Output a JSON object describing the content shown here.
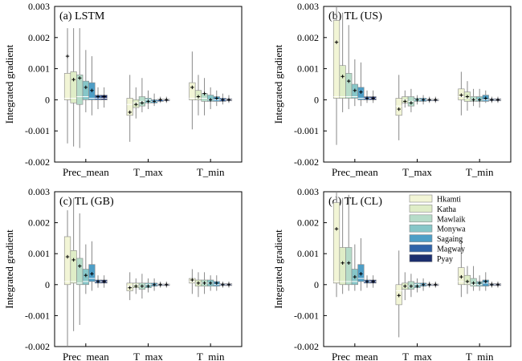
{
  "figure": {
    "ylabel": "Integrated gradient",
    "legend": {
      "title": "",
      "placement": "upper-left of panel (d)",
      "entries": [
        "Hkamti",
        "Katha",
        "Mawlaik",
        "Monywa",
        "Sagaing",
        "Magway",
        "Pyay"
      ]
    },
    "colors": [
      "#f2f5d6",
      "#dfedc7",
      "#b6dcc9",
      "#86c6c8",
      "#4e9ec6",
      "#2f63a8",
      "#1c2f6e"
    ],
    "box_stroke": "#888888",
    "median_color": "#ffffff",
    "mean_marker": "+"
  },
  "chart_data": [
    {
      "type": "box",
      "title": "(a) LSTM",
      "categories": [
        "Prec_mean",
        "T_max",
        "T_min"
      ],
      "ylim": [
        -0.002,
        0.003
      ],
      "yticks": [
        "-0.002",
        "-0.001",
        "0",
        "0.001",
        "0.002",
        "0.003"
      ],
      "ylabel": "Integrated gradient",
      "grid": false,
      "series": [
        {
          "name": "Hkamti",
          "groups": [
            [
              -0.0014,
              0.0,
              5e-05,
              0.00085,
              0.0023,
              0.0014
            ],
            [
              -0.00135,
              -0.0005,
              -0.00015,
              5e-05,
              0.0008,
              -0.0004
            ],
            [
              -0.00095,
              0.0,
              5e-05,
              0.00055,
              0.00155,
              0.0004
            ]
          ]
        },
        {
          "name": "Katha",
          "groups": [
            [
              -0.0015,
              -0.0001,
              5e-05,
              0.0009,
              0.0023,
              0.00065
            ],
            [
              -0.0006,
              -0.00025,
              -0.0001,
              0.0,
              0.0004,
              -0.00015
            ],
            [
              -0.0005,
              0.0,
              5e-05,
              0.0003,
              0.0008,
              0.0001
            ]
          ]
        },
        {
          "name": "Mawlaik",
          "groups": [
            [
              -0.00155,
              -0.00015,
              0.0001,
              0.0008,
              0.0023,
              0.0007
            ],
            [
              -0.0004,
              -0.0002,
              -5e-05,
              0.0001,
              0.0007,
              -0.0001
            ],
            [
              -0.0005,
              -5e-05,
              5e-05,
              0.0002,
              0.0007,
              0.0002
            ]
          ]
        },
        {
          "name": "Monywa",
          "groups": [
            [
              -0.0004,
              0.0,
              0.0001,
              0.0006,
              0.0016,
              0.0004
            ],
            [
              -0.0003,
              -0.0001,
              0.0,
              5e-05,
              0.0003,
              -5e-05
            ],
            [
              -0.0003,
              -5e-05,
              0.0,
              0.00015,
              0.0004,
              0.0
            ]
          ]
        },
        {
          "name": "Sagaing",
          "groups": [
            [
              -0.0005,
              0.0,
              5e-05,
              0.00055,
              0.0014,
              0.0003
            ],
            [
              -0.0002,
              -0.0001,
              -5e-05,
              0.0,
              0.0002,
              -5e-05
            ],
            [
              -0.0002,
              -5e-05,
              0.0,
              0.0001,
              0.0003,
              5e-05
            ]
          ]
        },
        {
          "name": "Magway",
          "groups": [
            [
              -0.0003,
              0.0,
              5e-05,
              0.00015,
              0.0004,
              0.0001
            ],
            [
              -0.0001,
              -5e-05,
              0.0,
              2e-05,
              0.0001,
              0.0
            ],
            [
              -0.00015,
              -5e-05,
              0.0,
              5e-05,
              0.0002,
              0.0
            ]
          ]
        },
        {
          "name": "Pyay",
          "groups": [
            [
              -0.00025,
              0.0,
              5e-05,
              0.00015,
              0.0004,
              0.0001
            ],
            [
              -0.0001,
              -3e-05,
              0.0,
              2e-05,
              0.0001,
              0.0
            ],
            [
              -0.0001,
              -3e-05,
              0.0,
              3e-05,
              0.00015,
              0.0
            ]
          ]
        }
      ]
    },
    {
      "type": "box",
      "title": "(b) TL (US)",
      "categories": [
        "Prec_mean",
        "T_max",
        "T_min"
      ],
      "ylim": [
        -0.002,
        0.003
      ],
      "yticks": [
        "-0.002",
        "-0.001",
        "0",
        "0.001",
        "0.002",
        "0.003"
      ],
      "ylabel": "Integrated gradient",
      "grid": false,
      "series": [
        {
          "name": "Hkamti",
          "groups": [
            [
              -0.00145,
              5e-05,
              0.0001,
              0.00255,
              0.003,
              0.00185
            ],
            [
              -0.0013,
              -0.0005,
              -0.0002,
              5e-05,
              0.0008,
              -0.0003
            ],
            [
              -0.0005,
              0.0,
              0.0001,
              0.00035,
              0.0009,
              0.00015
            ]
          ]
        },
        {
          "name": "Katha",
          "groups": [
            [
              -0.0004,
              5e-05,
              0.0001,
              0.0011,
              0.0028,
              0.00075
            ],
            [
              -0.00025,
              -0.0001,
              0.0,
              0.0001,
              0.0003,
              -5e-05
            ],
            [
              -0.00035,
              -5e-05,
              5e-05,
              0.00025,
              0.0006,
              0.0001
            ]
          ]
        },
        {
          "name": "Mawlaik",
          "groups": [
            [
              -0.0003,
              5e-05,
              0.0001,
              0.00085,
              0.0024,
              0.0006
            ],
            [
              -0.0004,
              -0.0002,
              -5e-05,
              0.0001,
              0.00035,
              -0.0001
            ],
            [
              -0.0002,
              -5e-05,
              0.0,
              0.0001,
              0.00035,
              0.0
            ]
          ]
        },
        {
          "name": "Monywa",
          "groups": [
            [
              -0.0002,
              5e-05,
              0.0001,
              0.0005,
              0.0013,
              0.0003
            ],
            [
              -0.00015,
              -5e-05,
              0.0,
              5e-05,
              0.00015,
              0.0
            ],
            [
              -0.00025,
              -5e-05,
              0.0,
              0.0001,
              0.00035,
              0.0
            ]
          ]
        },
        {
          "name": "Sagaing",
          "groups": [
            [
              -0.0002,
              0.0,
              5e-05,
              0.0004,
              0.0012,
              0.00025
            ],
            [
              -0.00015,
              -5e-05,
              0.0,
              5e-05,
              0.00015,
              0.0
            ],
            [
              -0.0001,
              -5e-05,
              0.0,
              0.00015,
              0.0003,
              5e-05
            ]
          ]
        },
        {
          "name": "Magway",
          "groups": [
            [
              -0.0001,
              0.0,
              5e-05,
              0.0001,
              0.0003,
              5e-05
            ],
            [
              -0.0001,
              -3e-05,
              0.0,
              2e-05,
              0.0001,
              0.0
            ],
            [
              -0.0001,
              -3e-05,
              0.0,
              3e-05,
              0.0001,
              0.0
            ]
          ]
        },
        {
          "name": "Pyay",
          "groups": [
            [
              -0.0001,
              0.0,
              5e-05,
              0.0001,
              0.0003,
              5e-05
            ],
            [
              -0.0001,
              -3e-05,
              0.0,
              2e-05,
              0.0001,
              0.0
            ],
            [
              -0.0001,
              -3e-05,
              0.0,
              3e-05,
              0.0001,
              0.0
            ]
          ]
        }
      ]
    },
    {
      "type": "box",
      "title": "(c) TL (GB)",
      "categories": [
        "Prec_mean",
        "T_max",
        "T_min"
      ],
      "ylim": [
        -0.002,
        0.003
      ],
      "yticks": [
        "-0.002",
        "-0.001",
        "0",
        "0.001",
        "0.002",
        "0.003"
      ],
      "ylabel": "Integrated gradient",
      "grid": false,
      "series": [
        {
          "name": "Hkamti",
          "groups": [
            [
              -0.002,
              0.0,
              0.0001,
              0.00155,
              0.0024,
              0.0009
            ],
            [
              -0.0005,
              -0.0002,
              -5e-05,
              5e-05,
              0.0004,
              -0.0001
            ],
            [
              -0.0003,
              5e-05,
              0.0001,
              0.0002,
              0.0005,
              0.00015
            ]
          ]
        },
        {
          "name": "Katha",
          "groups": [
            [
              -0.0015,
              5e-05,
              0.0001,
              0.0011,
              0.0028,
              0.0008
            ],
            [
              -0.0003,
              -0.0001,
              0.0,
              5e-05,
              0.0002,
              -5e-05
            ],
            [
              -0.0004,
              -5e-05,
              5e-05,
              0.00015,
              0.0004,
              5e-05
            ]
          ]
        },
        {
          "name": "Mawlaik",
          "groups": [
            [
              -0.0013,
              0.0,
              5e-05,
              0.00085,
              0.0023,
              0.0006
            ],
            [
              -0.00045,
              -0.00015,
              -5e-05,
              5e-05,
              0.00035,
              -5e-05
            ],
            [
              -0.0003,
              -5e-05,
              5e-05,
              0.00015,
              0.0004,
              5e-05
            ]
          ]
        },
        {
          "name": "Monywa",
          "groups": [
            [
              -0.0003,
              0.0,
              0.0001,
              0.0005,
              0.0013,
              0.0003
            ],
            [
              -0.00025,
              -0.0001,
              0.0,
              5e-05,
              0.0002,
              -5e-05
            ],
            [
              -0.0002,
              -5e-05,
              5e-05,
              0.00015,
              0.0003,
              5e-05
            ]
          ]
        },
        {
          "name": "Sagaing",
          "groups": [
            [
              -0.0002,
              0.0001,
              0.0002,
              0.00065,
              0.0014,
              0.00035
            ],
            [
              -0.0002,
              -5e-05,
              0.0,
              5e-05,
              0.0002,
              0.0
            ],
            [
              -0.0002,
              -5e-05,
              0.0,
              0.0001,
              0.0003,
              5e-05
            ]
          ]
        },
        {
          "name": "Magway",
          "groups": [
            [
              -0.0001,
              5e-05,
              0.0001,
              0.00015,
              0.0003,
              0.0001
            ],
            [
              -0.0001,
              -3e-05,
              0.0,
              2e-05,
              0.0001,
              0.0
            ],
            [
              -0.0001,
              -3e-05,
              0.0,
              3e-05,
              0.0001,
              0.0
            ]
          ]
        },
        {
          "name": "Pyay",
          "groups": [
            [
              -0.0001,
              5e-05,
              0.0001,
              0.00015,
              0.0003,
              0.0001
            ],
            [
              -0.0001,
              -3e-05,
              0.0,
              2e-05,
              0.0001,
              0.0
            ],
            [
              -0.0001,
              -3e-05,
              0.0,
              3e-05,
              0.0001,
              0.0
            ]
          ]
        }
      ]
    },
    {
      "type": "box",
      "title": "(d) TL (CL)",
      "categories": [
        "Prec_mean",
        "T_max",
        "T_min"
      ],
      "ylim": [
        -0.002,
        0.003
      ],
      "yticks": [
        "-0.002",
        "-0.001",
        "0",
        "0.001",
        "0.002",
        "0.003"
      ],
      "ylabel": "Integrated gradient",
      "grid": false,
      "series": [
        {
          "name": "Hkamti",
          "groups": [
            [
              -0.0004,
              5e-05,
              0.0001,
              0.00265,
              0.003,
              0.0018
            ],
            [
              -0.0017,
              -0.00065,
              -0.0002,
              0.0,
              0.0011,
              -0.00035
            ],
            [
              -0.0004,
              0.0,
              0.0001,
              0.00055,
              0.0014,
              0.00025
            ]
          ]
        },
        {
          "name": "Katha",
          "groups": [
            [
              -0.0003,
              0.0,
              0.0001,
              0.0012,
              0.0028,
              0.0007
            ],
            [
              -0.0005,
              -0.00015,
              -5e-05,
              5e-05,
              0.0004,
              -5e-05
            ],
            [
              -0.0003,
              0.0,
              5e-05,
              0.0003,
              0.0006,
              0.0001
            ]
          ]
        },
        {
          "name": "Mawlaik",
          "groups": [
            [
              -0.0002,
              0.0,
              0.0001,
              0.0012,
              0.0029,
              0.0007
            ],
            [
              -0.0004,
              -0.00015,
              -5e-05,
              0.0001,
              0.00035,
              -5e-05
            ],
            [
              -0.0002,
              -5e-05,
              0.0,
              0.0002,
              0.0006,
              5e-05
            ]
          ]
        },
        {
          "name": "Monywa",
          "groups": [
            [
              -0.0002,
              0.0,
              0.0001,
              0.0005,
              0.0013,
              0.00025
            ],
            [
              -0.00025,
              -0.0001,
              0.0,
              5e-05,
              0.0002,
              -5e-05
            ],
            [
              -0.0002,
              -5e-05,
              0.0,
              0.0001,
              0.0003,
              5e-05
            ]
          ]
        },
        {
          "name": "Sagaing",
          "groups": [
            [
              -0.0002,
              0.0001,
              0.0002,
              0.00065,
              0.0015,
              0.00035
            ],
            [
              -0.0002,
              -5e-05,
              0.0,
              5e-05,
              0.0002,
              0.0
            ],
            [
              -0.0002,
              -5e-05,
              5e-05,
              0.00015,
              0.0004,
              0.0001
            ]
          ]
        },
        {
          "name": "Magway",
          "groups": [
            [
              -0.0001,
              5e-05,
              0.0001,
              0.00015,
              0.0003,
              0.0001
            ],
            [
              -0.0001,
              -3e-05,
              0.0,
              2e-05,
              0.0001,
              0.0
            ],
            [
              -0.0001,
              -3e-05,
              0.0,
              3e-05,
              0.0001,
              0.0
            ]
          ]
        },
        {
          "name": "Pyay",
          "groups": [
            [
              -0.0001,
              5e-05,
              0.0001,
              0.00015,
              0.0003,
              0.0001
            ],
            [
              -0.0001,
              -3e-05,
              0.0,
              2e-05,
              0.0001,
              0.0
            ],
            [
              -0.0001,
              -3e-05,
              0.0,
              3e-05,
              0.0001,
              0.0
            ]
          ]
        }
      ]
    }
  ]
}
